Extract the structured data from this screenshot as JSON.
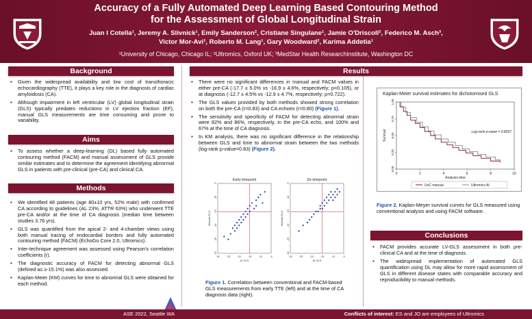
{
  "header": {
    "title_line1": "Accuracy of a Fully Automated Deep Learning Based Contouring Method",
    "title_line2": "for the Assessment of Global Longitudinal Strain",
    "authors_line1": "Juan I Cotella¹, Jeremy A. Slivnick¹, Emily Sanderson², Cristiane Singulane¹, Jamie O'Driscoll², Federico M. Asch³,",
    "authors_line2": "Victor Mor-Avi¹, Roberto M. Lang¹, Gary Woodward², Karima Addetia¹",
    "affiliations": "¹University of Chicago, Chicago IL; ²Ultromics, Oxford UK; ³MedStar Health ResearchInstitute, Washington DC"
  },
  "sections": {
    "background": "Background",
    "aims": "Aims",
    "methods": "Methods",
    "results": "Results",
    "conclusions": "Conclusions"
  },
  "background_items": [
    "Given the widespread availability and low cost of transthoracic echocardiography (TTE), it plays a key role in the diagnosis of cardiac amyloidosis (CA).",
    "Although impairment in left ventricular (LV) global longitudinal strain (GLS) typically predates reductions in LV ejection fraction (EF), manual GLS measurements are time consuming and prone to variability."
  ],
  "aims_items": [
    "To assess whether a deep-learning (DL) based fully automated contouring method (FACM) and manual assessment of GLS provide similar estimates and to determine the agreement identifying abnormal GLS in patients with pre-clinical (pre-CA) and clinical CA."
  ],
  "methods_items": [
    "We identified 48 patients (age 80±10 yrs, 52% male) with confirmed CA according to guidelines (AL 23%, ATTR 63%) who underwent TTE pre-CA and/or at the time of CA diagnosis (median time between studies 3.76 yrs).",
    "GLS was quantified from the apical 2- and 4-chamber views using both manual tracing of endocardial borders and fully automated contouring method (FACM) (EchoGo Core 2.0, Ultromics).",
    "Inter-technique agreement was assessed using Pearson's correlation coefficients (r).",
    "The diagnostic accuracy of FACM for detecting abnormal GLS (defined as ≥-15.1%) was also assessed.",
    "Kaplan-Meier (KM) curves for time to abnormal GLS were obtained for each method."
  ],
  "results_items": [
    {
      "text": "There were no significant differences in manual and FACM values in either pre-CA (-17.7 ± 5.0% vs -16.9 ± 4.6%, respectively; p=0.105), or at diagnosis (-12.7 ± 4.5% vs -12.9 ± 4.7%, respectively; p=0.722).",
      "ref": ""
    },
    {
      "text": "The GLS values provided by both methods showed strong correlation on both the pre-CA (r=0.83) and CA echoes (r=0.80) ",
      "ref": "(Figure 1)."
    },
    {
      "text": "The sensitivity and specificity of FACM for detecting abnormal strain were 82% and 86%, respectively, in the pre-CA echo, and 100% and 67% at the time of CA diagnosis.",
      "ref": ""
    },
    {
      "text": "In KM analysis, there was no significant difference in the relationship between GLS and time to abnormal strain between the two methods (log-rank p-value=0.83) ",
      "ref": "(Figure 2)."
    }
  ],
  "figure1": {
    "label": "Figure 1.",
    "caption": "Correlation between conventional and FACM-based GLS measurements from early TTE (left) and at the time of CA diagnosis data (right).",
    "left_title": "Early timepoint",
    "right_title": "Dx timepoint",
    "xlabel": "AI GLS",
    "ylabel": "Manual GLS"
  },
  "figure2": {
    "label": "Figure 2.",
    "caption": "Kaplan-Meyer survival curves for GLS measured using conventional analysis and using FACM software.",
    "chart_title": "Kaplan-Meier survival estimates for dichotomised GLS",
    "annotation": "Log-rank p-value = 0.8297",
    "xlabel": "Analysis time",
    "ylabel": "Survival",
    "legend": [
      "UoC manual",
      "Ultromics AI"
    ]
  },
  "conclusions_items": [
    "FACM provides accurate LV-GLS assessment in both pre-clinical CA and at the time of diagnosis.",
    "The widespread implementation of automated GLS quantification using DL may allow for more rapid assessment of GLS in different disease states with comparable accuracy and reproducibility to manual methods."
  ],
  "footer": {
    "left": "ASE 2022, Seattle WA",
    "right_bold": "Conflicts of interest:",
    "right": " ES and JO are employees of Ultromics"
  },
  "colors": {
    "brand": "#7a1430",
    "link": "#1f4eb0",
    "series_manual": "#7a1430",
    "series_ai": "#888888"
  },
  "chart_data": [
    {
      "type": "line",
      "title": "Kaplan-Meier survival estimates for dichotomised GLS",
      "xlabel": "Analysis time",
      "ylabel": "Survival",
      "xlim": [
        0,
        10
      ],
      "ylim": [
        0,
        1
      ],
      "xticks": [
        0,
        2,
        4,
        6,
        8,
        10
      ],
      "yticks": [
        "0.00",
        "0.25",
        "0.50",
        "0.75",
        "1.00"
      ],
      "series": [
        {
          "name": "UoC manual",
          "x": [
            0,
            0.3,
            0.6,
            0.9,
            1.2,
            1.6,
            2.0,
            2.4,
            2.9,
            3.3,
            3.8,
            4.3,
            4.8,
            5.3,
            5.9,
            6.5,
            7.2,
            8.0,
            8.8
          ],
          "y": [
            1.0,
            0.93,
            0.86,
            0.8,
            0.73,
            0.68,
            0.62,
            0.56,
            0.5,
            0.45,
            0.4,
            0.36,
            0.32,
            0.28,
            0.24,
            0.2,
            0.16,
            0.12,
            0.1
          ]
        },
        {
          "name": "Ultromics AI",
          "x": [
            0,
            0.4,
            0.8,
            1.2,
            1.7,
            2.2,
            2.7,
            3.2,
            3.8,
            4.4,
            5.0,
            5.6,
            6.2,
            6.9,
            7.6,
            8.4,
            8.8
          ],
          "y": [
            1.0,
            0.92,
            0.84,
            0.77,
            0.7,
            0.63,
            0.57,
            0.51,
            0.45,
            0.4,
            0.35,
            0.3,
            0.26,
            0.22,
            0.18,
            0.14,
            0.12
          ]
        }
      ]
    },
    {
      "type": "scatter",
      "title": "Early timepoint",
      "xlabel": "AI GLS",
      "ylabel": "Manual GLS",
      "xlim": [
        -30,
        -5
      ],
      "ylim": [
        -30,
        -5
      ],
      "xticks": [
        -30,
        -25,
        -20,
        -15,
        -10,
        -5
      ],
      "yticks": [
        -30,
        -25,
        -20,
        -15,
        -10,
        -5
      ],
      "x": [
        -27,
        -25,
        -24,
        -23,
        -22,
        -22,
        -21,
        -21,
        -20,
        -20,
        -19,
        -19,
        -18,
        -18,
        -17,
        -17,
        -16,
        -16,
        -15,
        -15,
        -14,
        -13,
        -12,
        -12,
        -11,
        -10,
        -9,
        -8
      ],
      "y": [
        -24,
        -25,
        -23,
        -21,
        -22,
        -20,
        -21,
        -19,
        -18,
        -20,
        -17,
        -19,
        -16,
        -18,
        -17,
        -15,
        -14,
        -16,
        -13,
        -15,
        -12,
        -14,
        -11,
        -13,
        -10,
        -9,
        -12,
        -8
      ]
    },
    {
      "type": "scatter",
      "title": "Dx timepoint",
      "xlabel": "AI GLS",
      "ylabel": "Manual GLS",
      "xlim": [
        -30,
        -5
      ],
      "ylim": [
        -30,
        -5
      ],
      "xticks": [
        -30,
        -25,
        -20,
        -15,
        -10,
        -5
      ],
      "yticks": [
        -30,
        -25,
        -20,
        -15,
        -10,
        -5
      ],
      "x": [
        -26,
        -24,
        -22,
        -21,
        -20,
        -19,
        -18,
        -17,
        -16,
        -16,
        -15,
        -15,
        -14,
        -14,
        -13,
        -13,
        -12,
        -12,
        -11,
        -11,
        -10,
        -10,
        -9,
        -9,
        -8,
        -8,
        -7
      ],
      "y": [
        -22,
        -20,
        -19,
        -18,
        -17,
        -16,
        -15,
        -15,
        -14,
        -13,
        -14,
        -12,
        -13,
        -11,
        -12,
        -10,
        -11,
        -9,
        -10,
        -8,
        -9,
        -11,
        -8,
        -10,
        -7,
        -9,
        -8
      ]
    }
  ]
}
